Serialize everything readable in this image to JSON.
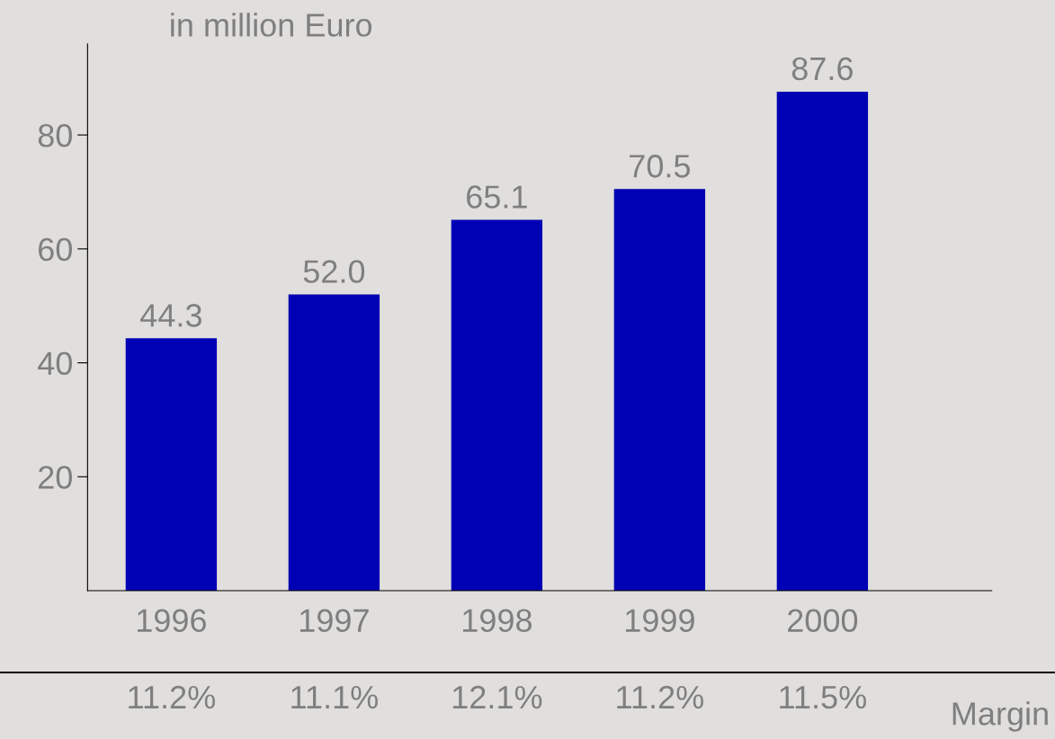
{
  "chart_data": {
    "type": "bar",
    "title": "in million Euro",
    "categories": [
      "1996",
      "1997",
      "1998",
      "1999",
      "2000"
    ],
    "values": [
      44.3,
      52.0,
      65.1,
      70.5,
      87.6
    ],
    "color": "#0000b4",
    "value_labels": [
      "44.3",
      "52.0",
      "65.1",
      "70.5",
      "87.6"
    ],
    "ylim": [
      0,
      96
    ],
    "yticks": [
      20,
      40,
      60,
      80
    ],
    "grid": false,
    "legend": false,
    "annotations": [
      "11.2%",
      "11.1%",
      "12.1%",
      "11.2%",
      "11.5%",
      "Margin"
    ]
  }
}
